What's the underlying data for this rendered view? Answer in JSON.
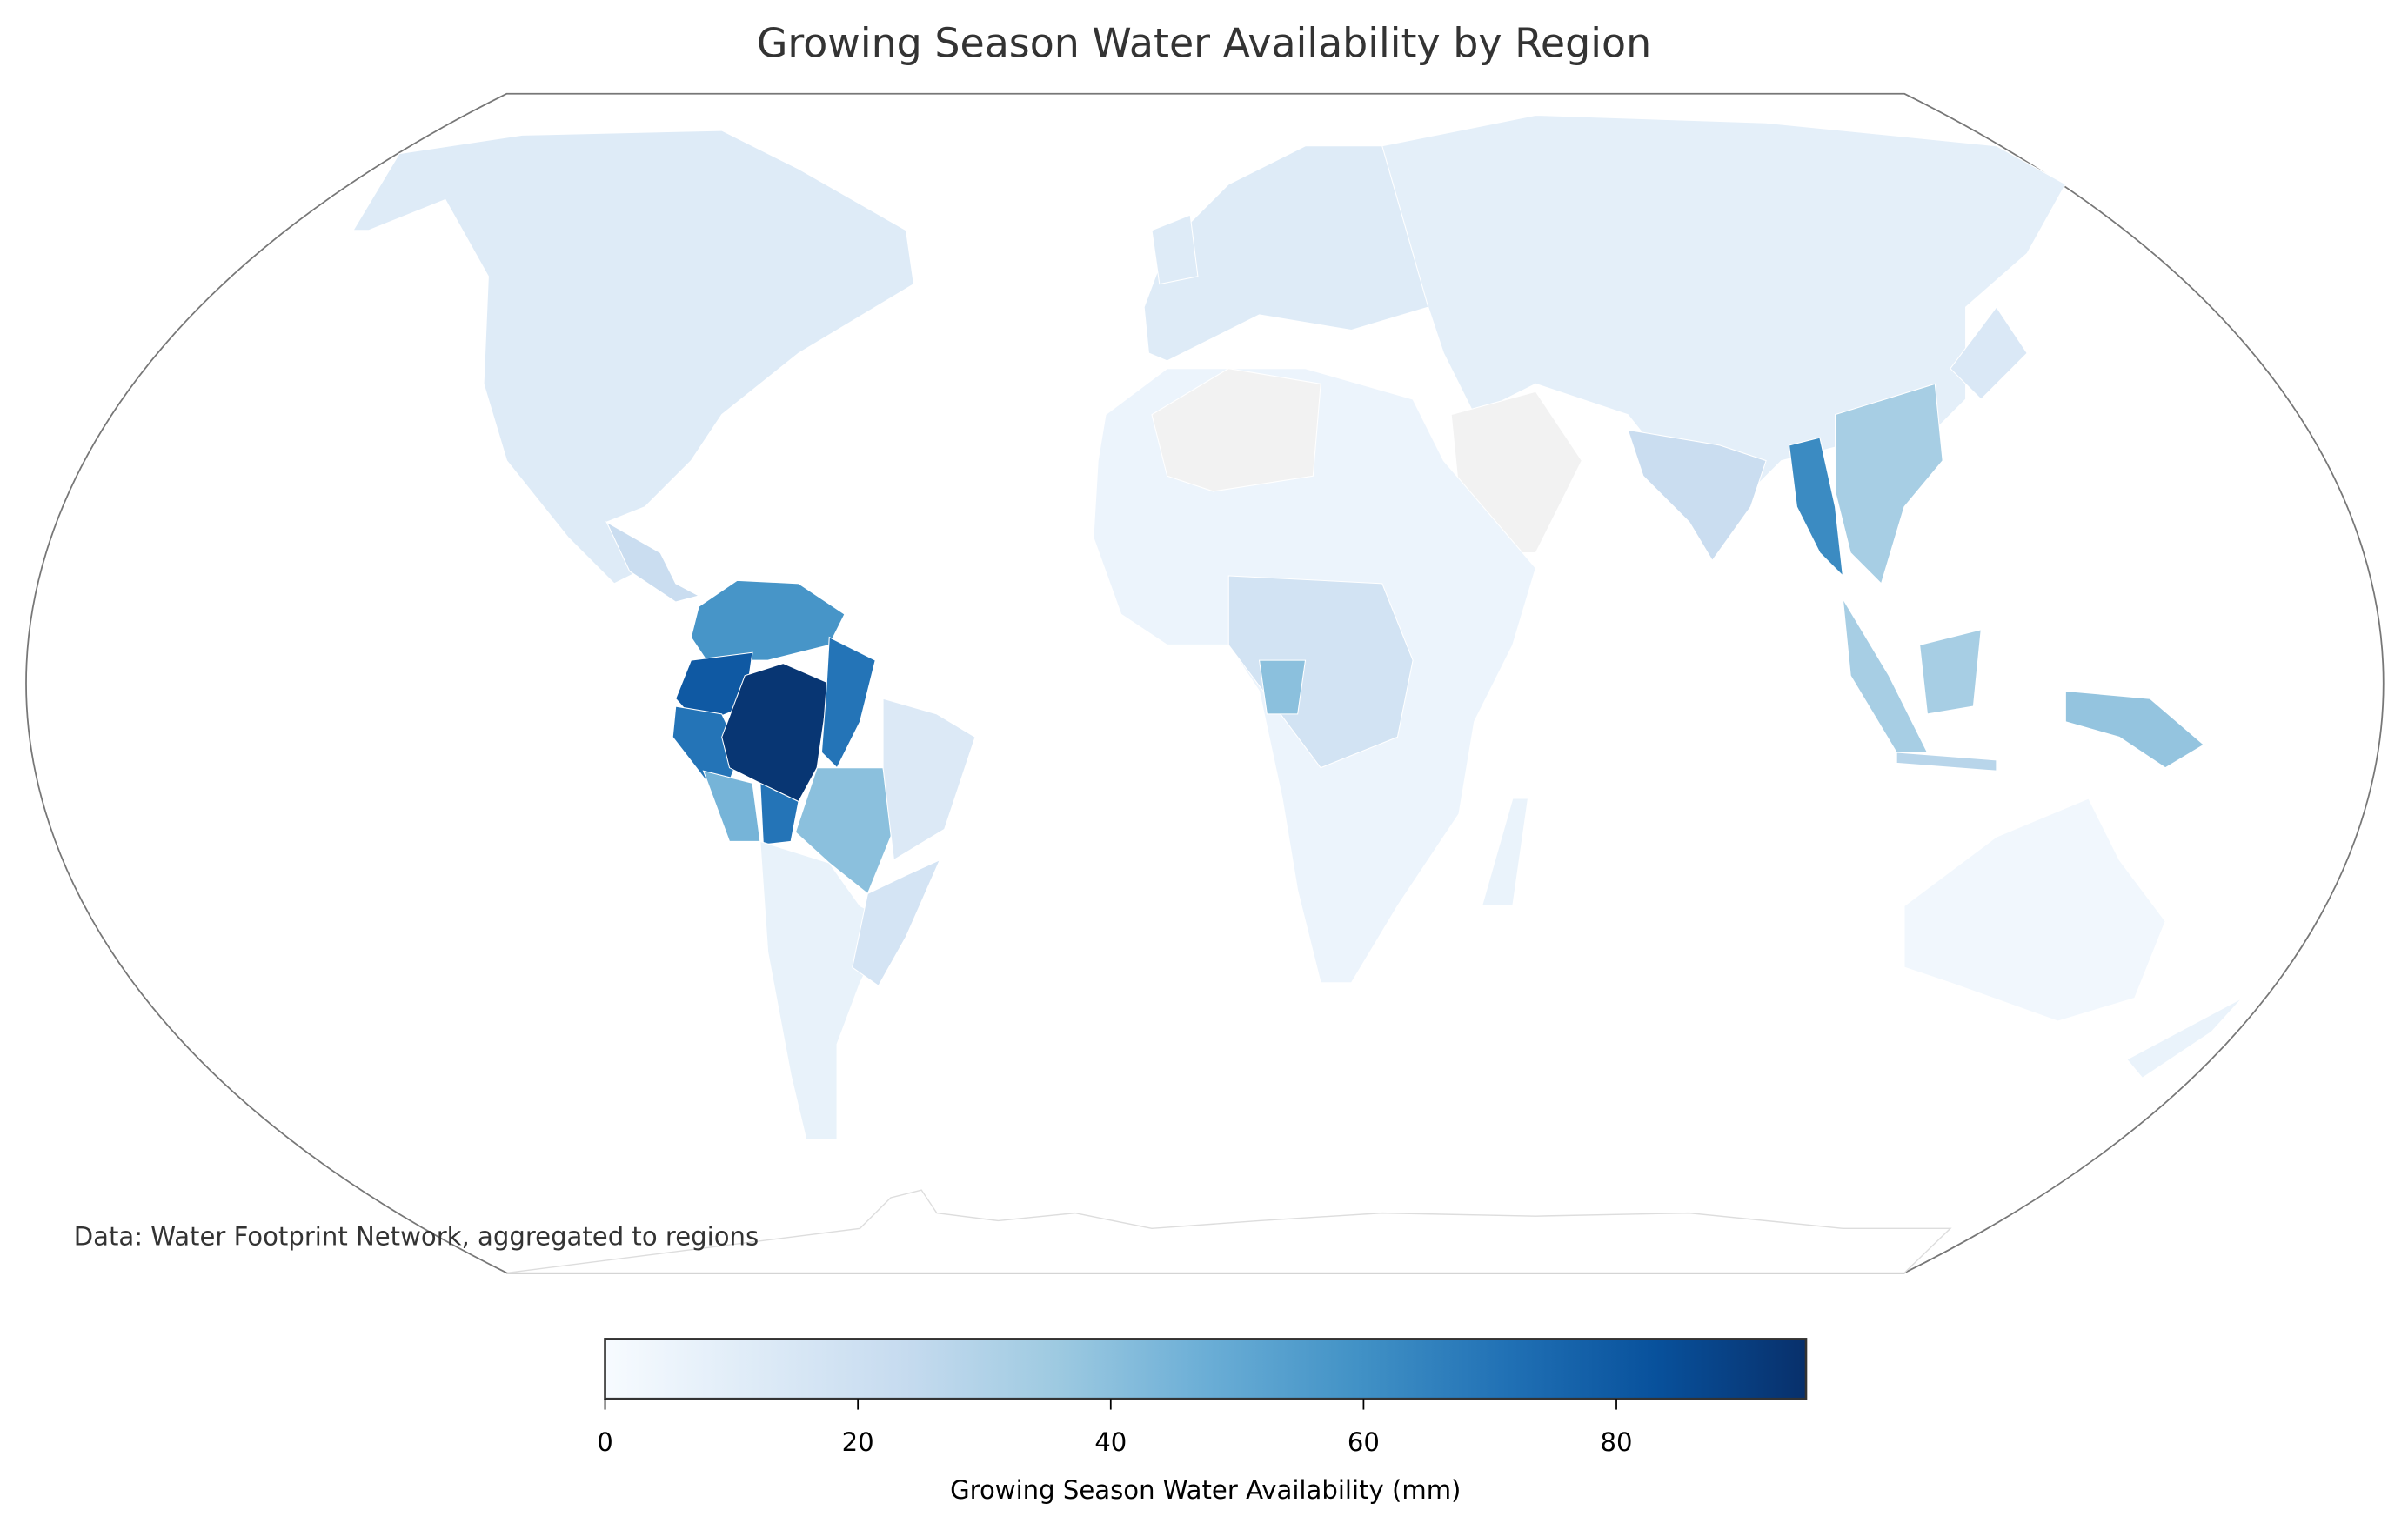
{
  "chart_data": {
    "type": "heatmap",
    "subtype": "choropleth",
    "title": "Growing Season Water Availability by Region",
    "caption": "Data: Water Footprint Network, aggregated to regions",
    "colorbar": {
      "label": "Growing Season Water Availability (mm)",
      "range": [
        0,
        95
      ],
      "ticks": [
        0,
        20,
        40,
        60,
        80
      ],
      "tick_labels": [
        "0",
        "20",
        "40",
        "60",
        "80"
      ],
      "colormap": "Blues",
      "placement": "bottom"
    },
    "colormap_stops": [
      "#f7fbff",
      "#deebf7",
      "#c6dbef",
      "#9ecae1",
      "#6baed6",
      "#4292c6",
      "#2171b5",
      "#08519c",
      "#08306b"
    ],
    "nodata_color": "#f2f2f2",
    "regions": [
      {
        "id": "r01",
        "value": 12
      },
      {
        "id": "r02",
        "value": null
      },
      {
        "id": "r03",
        "value": 22
      },
      {
        "id": "r04",
        "value": 58
      },
      {
        "id": "r05",
        "value": 80
      },
      {
        "id": "r06",
        "value": 70
      },
      {
        "id": "r07",
        "value": 93
      },
      {
        "id": "r08",
        "value": 70
      },
      {
        "id": "r09",
        "value": 45
      },
      {
        "id": "r10",
        "value": 70
      },
      {
        "id": "r11",
        "value": 40
      },
      {
        "id": "r12",
        "value": 13
      },
      {
        "id": "r13",
        "value": 7
      },
      {
        "id": "r14",
        "value": 17
      },
      {
        "id": "r15",
        "value": 12
      },
      {
        "id": "r16",
        "value": 9
      },
      {
        "id": "r17",
        "value": 22
      },
      {
        "id": "r18",
        "value": 62
      },
      {
        "id": "r19",
        "value": 33
      },
      {
        "id": "r20",
        "value": null
      },
      {
        "id": "r21",
        "value": 5
      },
      {
        "id": "r22",
        "value": null
      },
      {
        "id": "r23",
        "value": 18
      },
      {
        "id": "r24",
        "value": 40
      },
      {
        "id": "r25",
        "value": 6
      },
      {
        "id": "r26",
        "value": 33
      },
      {
        "id": "r27",
        "value": 33
      },
      {
        "id": "r28",
        "value": 28
      },
      {
        "id": "r29",
        "value": 38
      },
      {
        "id": "r30",
        "value": 3
      },
      {
        "id": "r31",
        "value": 6
      },
      {
        "id": "r32",
        "value": 14
      },
      {
        "id": "r33",
        "value": 12
      }
    ]
  }
}
